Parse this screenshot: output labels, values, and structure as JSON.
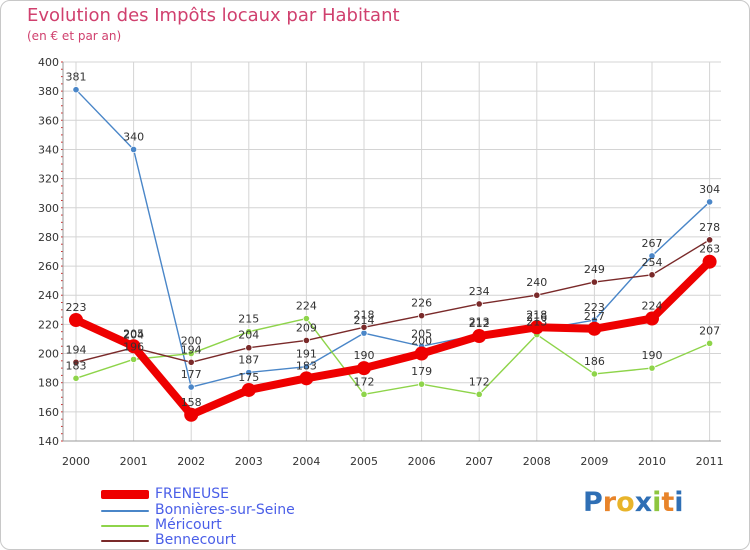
{
  "chart_data": {
    "type": "line",
    "title": "Evolution des Impôts locaux par Habitant",
    "subtitle": "(en € et par an)",
    "xlabel": "",
    "ylabel": "",
    "ylim": [
      140,
      400
    ],
    "yticks": [
      140,
      160,
      180,
      200,
      220,
      240,
      260,
      280,
      300,
      320,
      340,
      360,
      380,
      400
    ],
    "grid": true,
    "categories": [
      "2000",
      "2001",
      "2002",
      "2003",
      "2004",
      "2005",
      "2006",
      "2007",
      "2008",
      "2009",
      "2010",
      "2011"
    ],
    "series": [
      {
        "name": "FRENEUSE",
        "color": "#ee0000",
        "emphasis": true,
        "values": [
          223,
          205,
          158,
          175,
          183,
          190,
          200,
          212,
          218,
          217,
          224,
          263
        ]
      },
      {
        "name": "Bonnières-sur-Seine",
        "color": "#4a86c8",
        "values": [
          381,
          340,
          177,
          187,
          191,
          214,
          205,
          213,
          216,
          223,
          267,
          304
        ]
      },
      {
        "name": "Méricourt",
        "color": "#8ed44a",
        "values": [
          183,
          196,
          200,
          215,
          224,
          172,
          179,
          172,
          213,
          186,
          190,
          207
        ]
      },
      {
        "name": "Bennecourt",
        "color": "#7a2a2a",
        "values": [
          194,
          204,
          194,
          204,
          209,
          218,
          226,
          234,
          240,
          249,
          254,
          278
        ]
      }
    ]
  },
  "brand": {
    "name": "Proxiti",
    "letters": [
      "P",
      "r",
      "o",
      "x",
      "i",
      "t",
      "i"
    ],
    "colors": [
      "#2f6fb5",
      "#e8842a",
      "#e8b42a",
      "#2f6fb5",
      "#8ec63f",
      "#e8842a",
      "#2f6fb5"
    ]
  }
}
